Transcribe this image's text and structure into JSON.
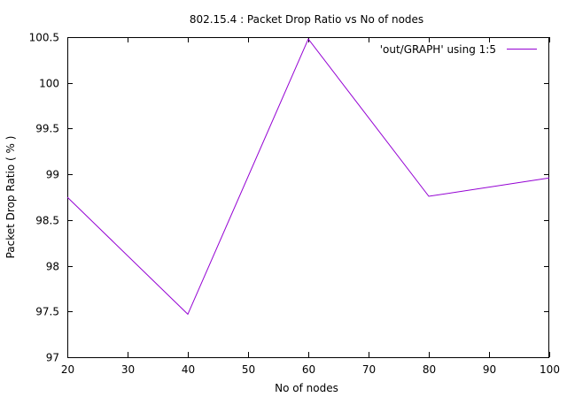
{
  "chart_data": {
    "type": "line",
    "title": "802.15.4 : Packet Drop Ratio vs No of nodes",
    "xlabel": "No of nodes",
    "ylabel": "Packet Drop Ratio ( % )",
    "xlim": [
      20,
      100
    ],
    "ylim": [
      97,
      100.5
    ],
    "xticks": [
      "20",
      "30",
      "40",
      "50",
      "60",
      "70",
      "80",
      "90",
      "100"
    ],
    "yticks": [
      "97",
      "97.5",
      "98",
      "98.5",
      "99",
      "99.5",
      "100",
      "100.5"
    ],
    "grid": false,
    "legend_position": "top-right",
    "series": [
      {
        "name": "'out/GRAPH' using 1:5",
        "color": "#9400d3",
        "x": [
          20,
          40,
          60,
          80,
          100
        ],
        "y": [
          98.75,
          97.47,
          100.48,
          98.76,
          98.96
        ]
      }
    ]
  }
}
